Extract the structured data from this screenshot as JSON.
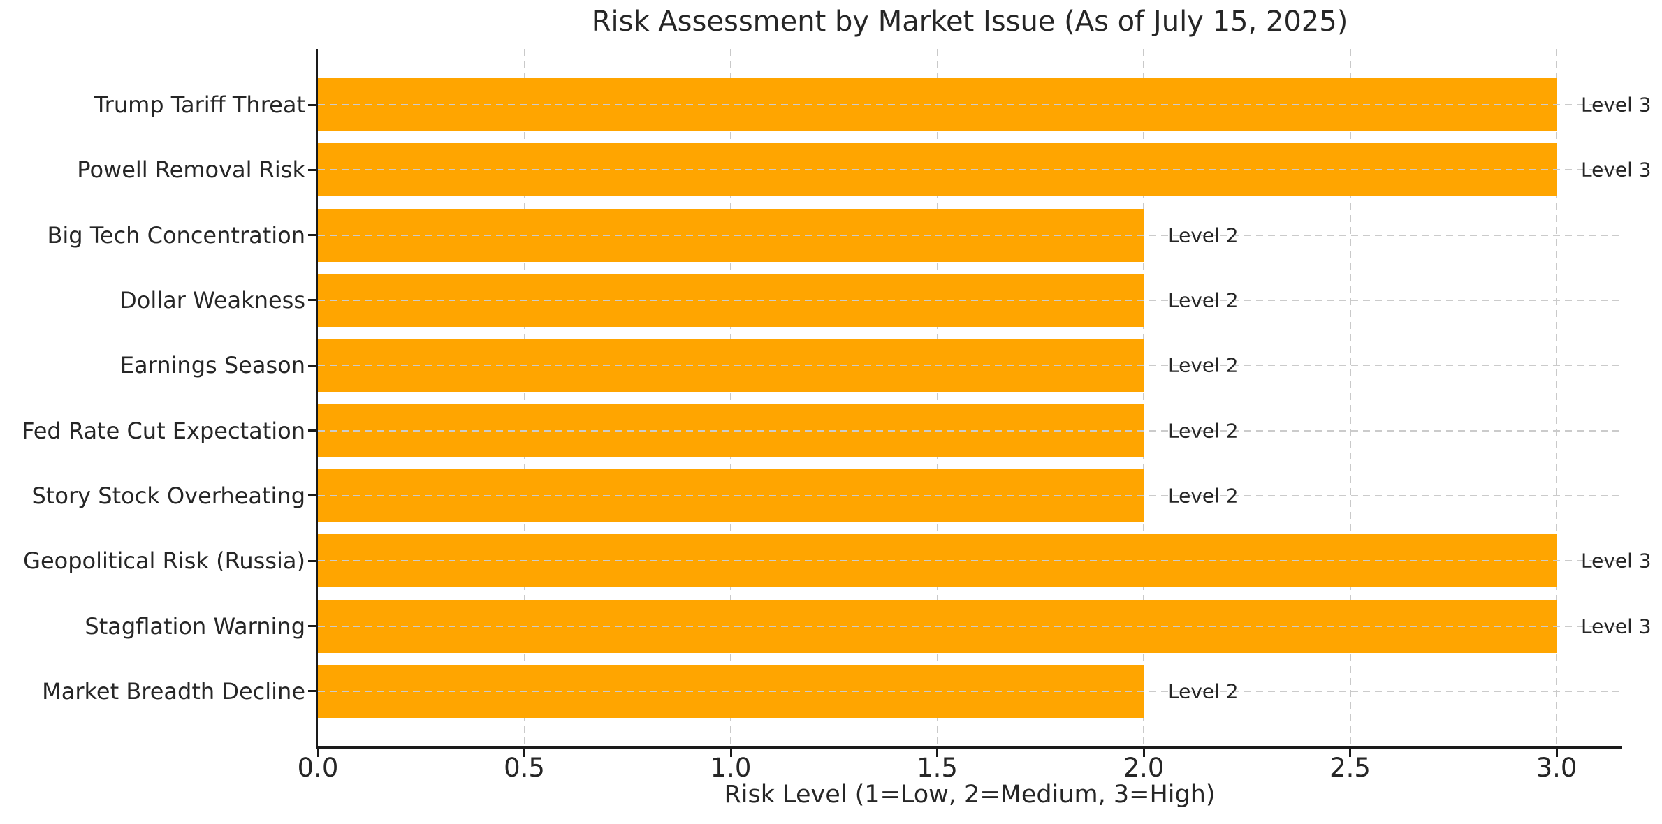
{
  "chart_data": {
    "type": "bar",
    "orientation": "horizontal",
    "title": "Risk Assessment by Market Issue (As of July 15, 2025)",
    "xlabel": "Risk Level (1=Low, 2=Medium, 3=High)",
    "ylabel": "",
    "categories": [
      "Trump Tariff Threat",
      "Powell Removal Risk",
      "Big Tech Concentration",
      "Dollar Weakness",
      "Earnings Season",
      "Fed Rate Cut Expectation",
      "Story Stock Overheating",
      "Geopolitical Risk (Russia)",
      "Stagflation Warning",
      "Market Breadth Decline"
    ],
    "values": [
      3,
      3,
      2,
      2,
      2,
      2,
      2,
      3,
      3,
      2
    ],
    "bar_value_labels": [
      "Level 3",
      "Level 3",
      "Level 2",
      "Level 2",
      "Level 2",
      "Level 2",
      "Level 2",
      "Level 3",
      "Level 3",
      "Level 2"
    ],
    "x_ticks": [
      0,
      0.5,
      1,
      1.5,
      2,
      2.5,
      3
    ],
    "x_tick_labels": [
      "0.0",
      "0.5",
      "1.0",
      "1.5",
      "2.0",
      "2.5",
      "3.0"
    ],
    "xlim": [
      0,
      3.16
    ],
    "grid": true,
    "grid_style": "dashed",
    "legend": false,
    "colors": {
      "bar": "#FFA500",
      "grid": "#c9c9c9",
      "axis": "#1a1a1a",
      "text": "#262626"
    }
  }
}
